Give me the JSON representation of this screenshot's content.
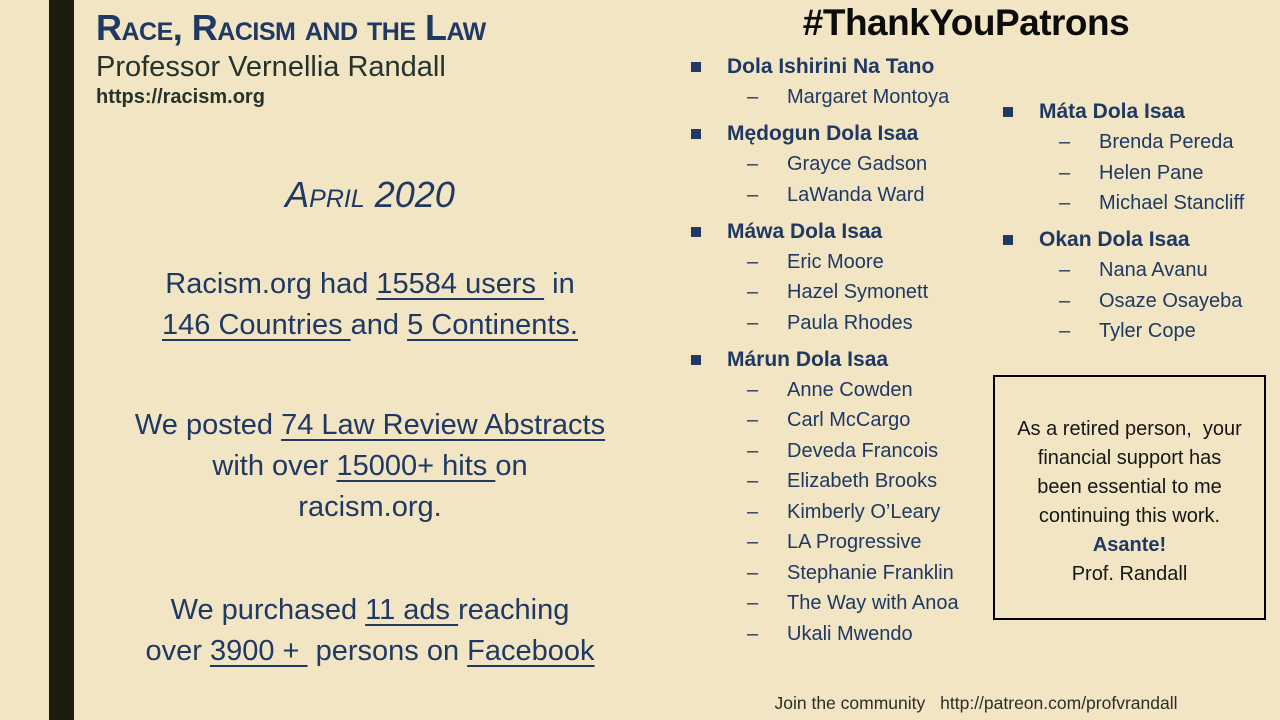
{
  "colors": {
    "background": "#f2e5c4",
    "accent_bar": "#1b1d11",
    "navy_text": "#1f3864",
    "dark_text": "#26332b",
    "heading_black": "#0c0c0c"
  },
  "header": {
    "title": "Race, Racism and the Law",
    "subtitle": "Professor Vernellia Randall",
    "url": "https://racism.org"
  },
  "report": {
    "date": "April 2020",
    "stats": [
      {
        "name": "users",
        "segments": [
          {
            "t": "Racism.org had "
          },
          {
            "t": "15584 users ",
            "u": true
          },
          {
            "t": " in"
          },
          {
            "br": true
          },
          {
            "t": "146 Countries ",
            "u": true
          },
          {
            "t": "and "
          },
          {
            "t": "5 Continents.",
            "u": true
          }
        ]
      },
      {
        "name": "abstracts",
        "segments": [
          {
            "t": "We posted "
          },
          {
            "t": "74 Law Review Abstracts",
            "u": true
          },
          {
            "br": true
          },
          {
            "t": "with over "
          },
          {
            "t": "15000+ hits ",
            "u": true
          },
          {
            "t": "on"
          },
          {
            "br": true
          },
          {
            "t": "racism.org."
          }
        ]
      },
      {
        "name": "ads",
        "segments": [
          {
            "t": "We purchased "
          },
          {
            "t": "11 ads ",
            "u": true
          },
          {
            "t": "reaching"
          },
          {
            "br": true
          },
          {
            "t": "over "
          },
          {
            "t": "3900 + ",
            "u": true
          },
          {
            "t": " persons on "
          },
          {
            "t": "Facebook",
            "u": true
          }
        ]
      }
    ]
  },
  "patrons": {
    "heading": "#ThankYouPatrons",
    "bullet_dash": "–",
    "col1": [
      {
        "label": "Dola Ishirini Na Tano",
        "members": [
          "Margaret Montoya"
        ]
      },
      {
        "label": "Mędogun Dola Isaa",
        "members": [
          "Grayce Gadson",
          "LaWanda Ward"
        ]
      },
      {
        "label": "Máwa Dola Isaa",
        "members": [
          "Eric Moore",
          "Hazel Symonett",
          "Paula Rhodes"
        ]
      },
      {
        "label": "Márun Dola Isaa",
        "members": [
          "Anne Cowden",
          "Carl McCargo",
          "Deveda Francois",
          "Elizabeth Brooks",
          "Kimberly O’Leary",
          "LA Progressive",
          "Stephanie Franklin",
          "The Way with Anoa",
          "Ukali Mwendo"
        ]
      }
    ],
    "col2": [
      {
        "label": "Máta Dola Isaa",
        "members": [
          "Brenda Pereda",
          "Helen Pane",
          "Michael Stancliff"
        ]
      },
      {
        "label": "Okan Dola Isaa",
        "members": [
          "Nana Avanu",
          "Osaze Osayeba",
          "Tyler Cope"
        ]
      }
    ]
  },
  "note": {
    "lines": [
      "As a retired person,  your",
      "financial support has",
      "been essential to me",
      "continuing this work."
    ],
    "highlight": "Asante!",
    "signature": "Prof. Randall"
  },
  "footer": {
    "label": "Join the community",
    "url": "http://patreon.com/profvrandall"
  }
}
